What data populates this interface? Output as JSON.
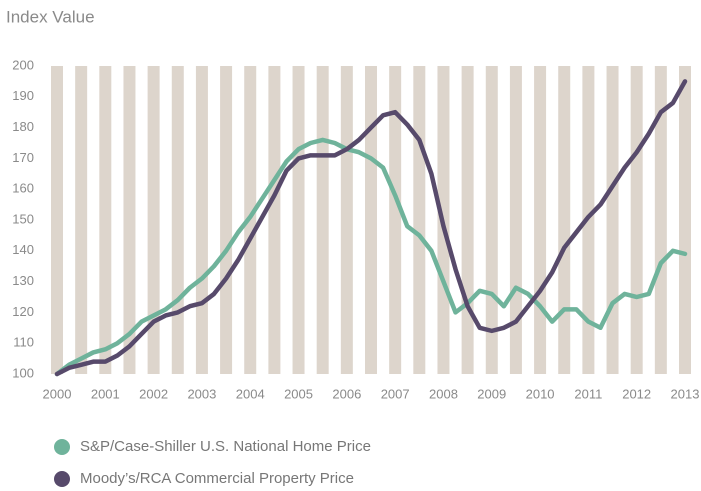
{
  "chart_data": {
    "type": "line",
    "title": "Index Value",
    "x": [
      2000,
      2000.25,
      2000.5,
      2000.75,
      2001,
      2001.25,
      2001.5,
      2001.75,
      2002,
      2002.25,
      2002.5,
      2002.75,
      2003,
      2003.25,
      2003.5,
      2003.75,
      2004,
      2004.25,
      2004.5,
      2004.75,
      2005,
      2005.25,
      2005.5,
      2005.75,
      2006,
      2006.25,
      2006.5,
      2006.75,
      2007,
      2007.25,
      2007.5,
      2007.75,
      2008,
      2008.25,
      2008.5,
      2008.75,
      2009,
      2009.25,
      2009.5,
      2009.75,
      2010,
      2010.25,
      2010.5,
      2010.75,
      2011,
      2011.25,
      2011.5,
      2011.75,
      2012,
      2012.25,
      2012.5,
      2012.75,
      2013
    ],
    "series": [
      {
        "name": "S&P/Case-Shiller U.S. National Home Price",
        "color": "#6fb39b",
        "values": [
          100,
          103,
          105,
          107,
          108,
          110,
          113,
          117,
          119,
          121,
          124,
          128,
          131,
          135,
          140,
          146,
          151,
          157,
          163,
          169,
          173,
          175,
          176,
          175,
          173,
          172,
          170,
          167,
          158,
          148,
          145,
          140,
          130,
          120,
          123,
          127,
          126,
          122,
          128,
          126,
          122,
          117,
          121,
          121,
          117,
          115,
          123,
          126,
          125,
          126,
          136,
          140,
          139
        ]
      },
      {
        "name": "Moody’s/RCA Commercial Property Price",
        "color": "#574a6b",
        "values": [
          100,
          102,
          103,
          104,
          104,
          106,
          109,
          113,
          117,
          119,
          120,
          122,
          123,
          126,
          131,
          137,
          144,
          151,
          158,
          166,
          170,
          171,
          171,
          171,
          173,
          176,
          180,
          184,
          185,
          181,
          176,
          165,
          148,
          134,
          122,
          115,
          114,
          115,
          117,
          122,
          127,
          133,
          141,
          146,
          151,
          155,
          161,
          167,
          172,
          178,
          185,
          188,
          195
        ]
      }
    ],
    "xlim": [
      2000,
      2013
    ],
    "xticks": [
      2000,
      2001,
      2002,
      2003,
      2004,
      2005,
      2006,
      2007,
      2008,
      2009,
      2010,
      2011,
      2012,
      2013
    ],
    "ylim": [
      100,
      200
    ],
    "yticks": [
      100,
      110,
      120,
      130,
      140,
      150,
      160,
      170,
      180,
      190,
      200
    ]
  }
}
